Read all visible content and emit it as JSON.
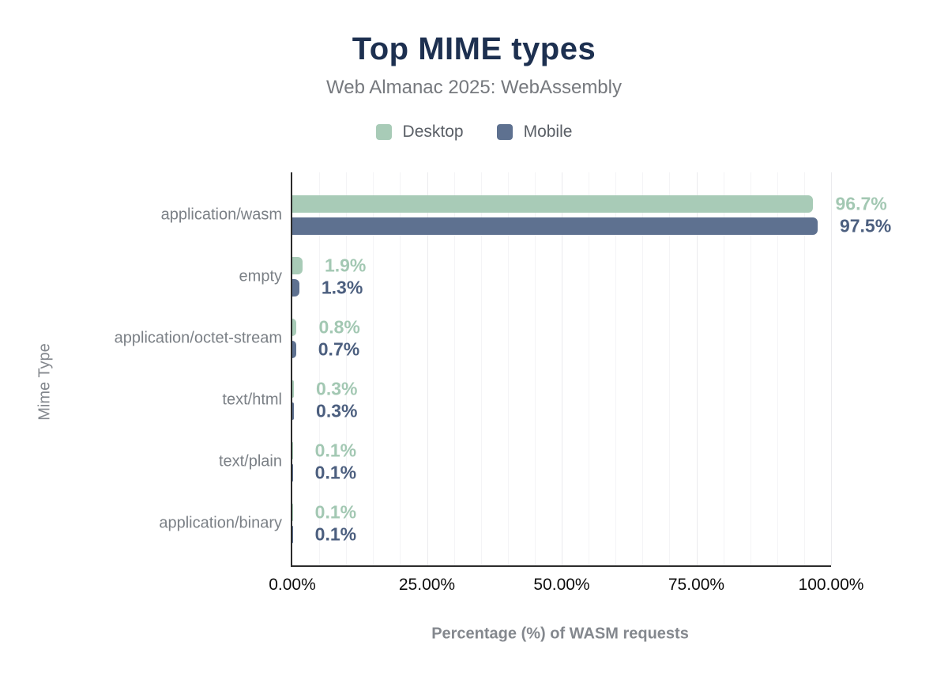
{
  "header": {
    "title": "Top MIME types",
    "subtitle": "Web Almanac 2025: WebAssembly"
  },
  "legend": [
    {
      "label": "Desktop",
      "color": "#a8cbb7"
    },
    {
      "label": "Mobile",
      "color": "#5e7190"
    }
  ],
  "chart_data": {
    "type": "bar",
    "orientation": "horizontal",
    "title": "Top MIME types",
    "subtitle": "Web Almanac 2025: WebAssembly",
    "xlabel": "Percentage (%) of WASM requests",
    "ylabel": "Mime Type",
    "xlim": [
      0,
      100
    ],
    "x_ticks": [
      "0.00%",
      "25.00%",
      "50.00%",
      "75.00%",
      "100.00%"
    ],
    "x_tick_values": [
      0,
      25,
      50,
      75,
      100
    ],
    "grid": "vertical minor gridlines every 5%, majors at 25%",
    "legend_position": "top",
    "categories": [
      "application/wasm",
      "empty",
      "application/octet-stream",
      "text/html",
      "text/plain",
      "application/binary"
    ],
    "series": [
      {
        "name": "Desktop",
        "color": "#a8cbb7",
        "label_color": "#a3c8b3",
        "values": [
          96.7,
          1.9,
          0.8,
          0.3,
          0.1,
          0.1
        ],
        "labels": [
          "96.7%",
          "1.9%",
          "0.8%",
          "0.3%",
          "0.1%",
          "0.1%"
        ]
      },
      {
        "name": "Mobile",
        "color": "#5e7190",
        "label_color": "#4c5f7f",
        "values": [
          97.5,
          1.3,
          0.7,
          0.3,
          0.1,
          0.1
        ],
        "labels": [
          "97.5%",
          "1.3%",
          "0.7%",
          "0.3%",
          "0.1%",
          "0.1%"
        ]
      }
    ]
  },
  "colors": {
    "title": "#1d3050",
    "subtitle": "#76797e",
    "legend_text": "#5a5f66",
    "category_label": "#7b8086",
    "tick_label": "#0d0d0d",
    "axis_title": "#84888e",
    "axis_line": "#2b2b2b",
    "gridline": "#f4f4f6",
    "desktop": "#a8cbb7",
    "mobile": "#5e7190"
  }
}
